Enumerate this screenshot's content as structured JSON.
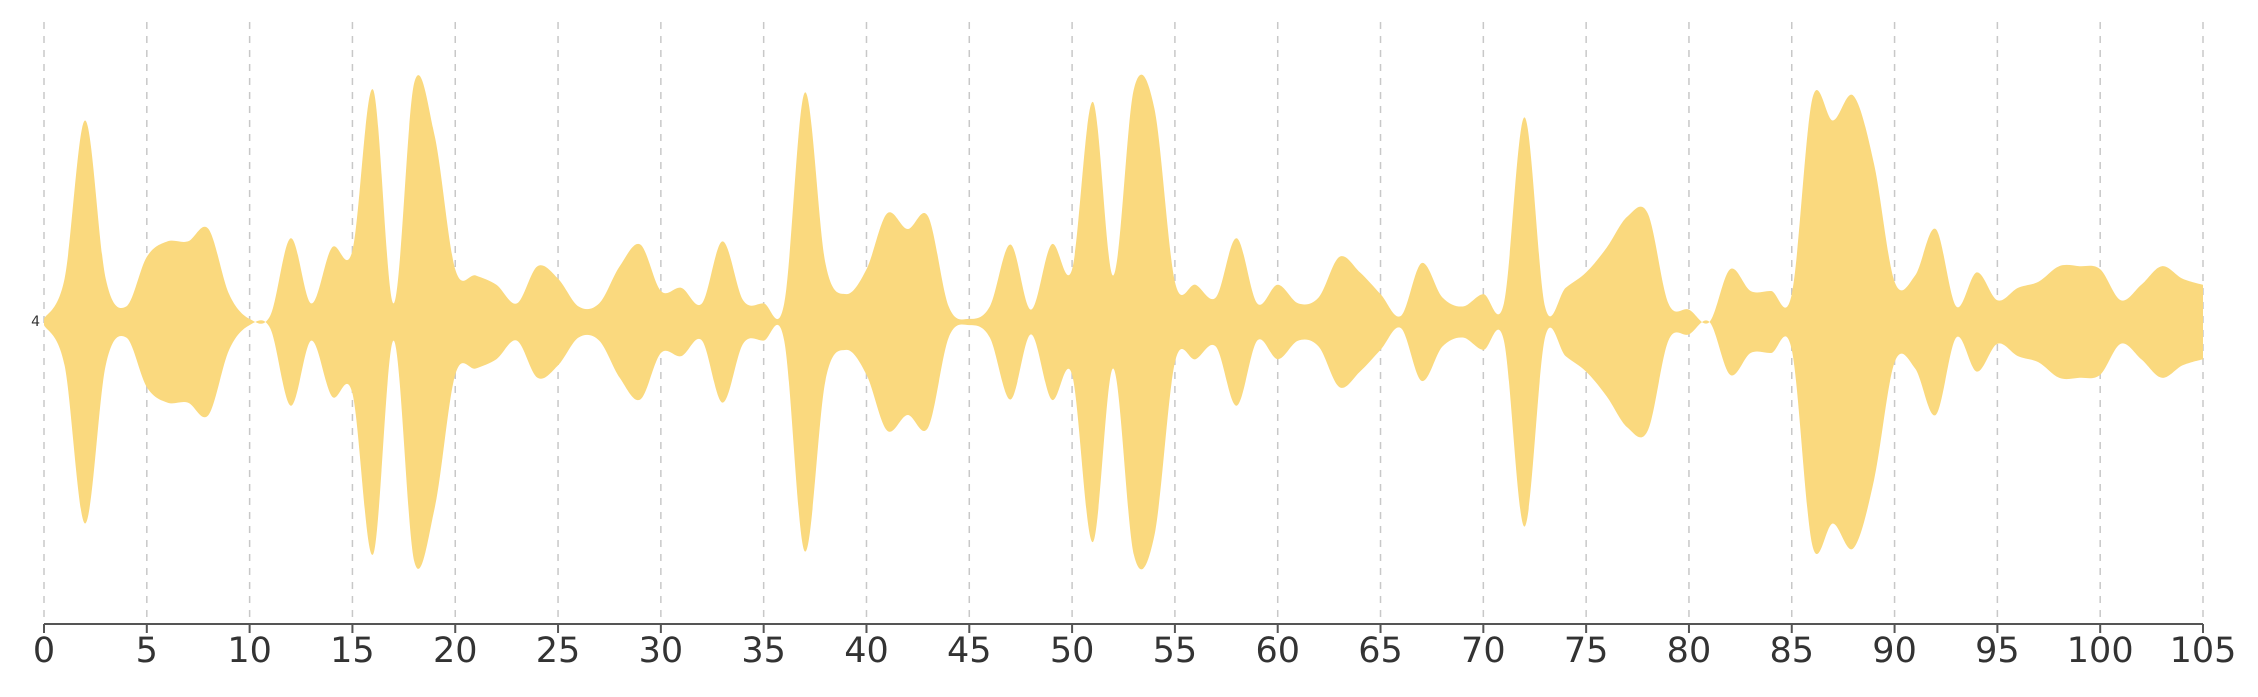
{
  "chart_data": {
    "type": "area",
    "subtype": "streamgraph-silhouette",
    "xlim": [
      0,
      105
    ],
    "x_ticks": [
      0,
      5,
      10,
      15,
      20,
      25,
      30,
      35,
      40,
      45,
      50,
      55,
      60,
      65,
      70,
      75,
      80,
      85,
      90,
      95,
      100,
      105
    ],
    "y_tick_label": "4",
    "grid": "vertical dashed at every x tick",
    "legend": "none",
    "color": "#FAD97E",
    "x": [
      0,
      1,
      2,
      3,
      4,
      5,
      6,
      7,
      8,
      9,
      10,
      11,
      12,
      13,
      14,
      15,
      16,
      17,
      18,
      19,
      20,
      21,
      22,
      23,
      24,
      25,
      26,
      27,
      28,
      29,
      30,
      31,
      32,
      33,
      34,
      35,
      36,
      37,
      38,
      39,
      40,
      41,
      42,
      43,
      44,
      45,
      46,
      47,
      48,
      49,
      50,
      51,
      52,
      53,
      54,
      55,
      56,
      57,
      58,
      59,
      60,
      61,
      62,
      63,
      64,
      65,
      66,
      67,
      68,
      69,
      70,
      71,
      72,
      73,
      74,
      75,
      76,
      77,
      78,
      79,
      80,
      81,
      82,
      83,
      84,
      85,
      86,
      87,
      88,
      89,
      90,
      91,
      92,
      93,
      94,
      95,
      96,
      97,
      98,
      99,
      100,
      101,
      102,
      103,
      104,
      105
    ],
    "half_width": [
      0.1,
      1.4,
      6.5,
      1.4,
      0.5,
      2.1,
      2.6,
      2.6,
      3.0,
      0.9,
      0.1,
      0.2,
      2.7,
      0.6,
      2.4,
      2.3,
      7.5,
      0.6,
      7.7,
      6.0,
      1.7,
      1.5,
      1.2,
      0.6,
      1.8,
      1.4,
      0.5,
      0.6,
      1.8,
      2.5,
      1.0,
      1.1,
      0.6,
      2.6,
      0.7,
      0.6,
      0.6,
      7.4,
      1.9,
      0.9,
      1.7,
      3.5,
      3.0,
      3.4,
      0.5,
      0.1,
      0.5,
      2.5,
      0.4,
      2.5,
      1.7,
      7.1,
      1.5,
      7.5,
      6.9,
      1.3,
      1.2,
      0.8,
      2.7,
      0.6,
      1.2,
      0.6,
      0.8,
      2.1,
      1.6,
      0.9,
      0.2,
      1.9,
      0.8,
      0.5,
      0.9,
      0.6,
      6.6,
      0.5,
      1.1,
      1.6,
      2.4,
      3.4,
      3.5,
      0.6,
      0.4,
      0.0,
      1.7,
      1.0,
      1.0,
      0.9,
      7.2,
      6.5,
      7.3,
      5.1,
      1.3,
      1.5,
      3.0,
      0.5,
      1.6,
      0.7,
      1.1,
      1.3,
      1.8,
      1.8,
      1.7,
      0.7,
      1.2,
      1.8,
      1.4,
      1.2
    ]
  }
}
